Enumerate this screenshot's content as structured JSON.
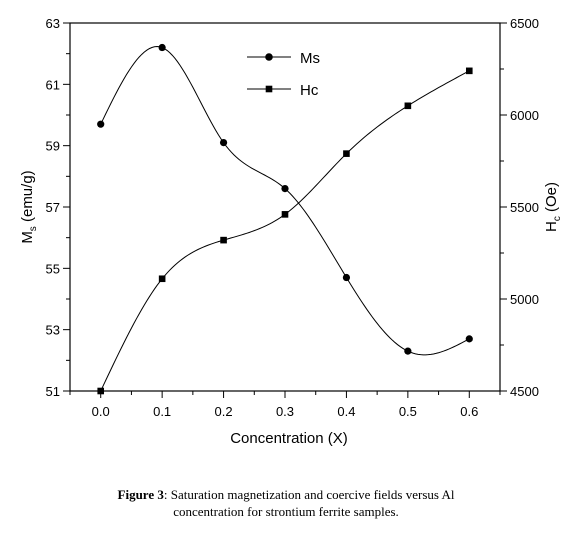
{
  "chart_data": {
    "type": "line",
    "xlabel": "Concentration (X)",
    "x_ticks": [
      "0.0",
      "0.1",
      "0.2",
      "0.3",
      "0.4",
      "0.5",
      "0.6"
    ],
    "xlim": [
      -0.05,
      0.65
    ],
    "y_left": {
      "label_main": "M",
      "label_sub": "s",
      "label_rest": " (emu/g)",
      "ylim": [
        51,
        63
      ],
      "ticks": [
        "51",
        "53",
        "55",
        "57",
        "59",
        "61",
        "63"
      ]
    },
    "y_right": {
      "label_main": "H",
      "label_sub": "c",
      "label_rest": " (Oe)",
      "ylim": [
        4500,
        6500
      ],
      "ticks": [
        "4500",
        "5000",
        "5500",
        "6000",
        "6500"
      ]
    },
    "series": [
      {
        "name": "Ms",
        "axis": "left",
        "marker": "circle",
        "x": [
          0.0,
          0.1,
          0.2,
          0.3,
          0.4,
          0.5,
          0.6
        ],
        "values": [
          59.7,
          62.2,
          59.1,
          57.6,
          54.7,
          52.3,
          52.7
        ]
      },
      {
        "name": "Hc",
        "axis": "right",
        "marker": "square",
        "x": [
          0.0,
          0.1,
          0.2,
          0.3,
          0.4,
          0.5,
          0.6
        ],
        "values": [
          4500,
          5110,
          5320,
          5460,
          5790,
          6050,
          6240
        ]
      }
    ],
    "legend_position": "top-center",
    "grid": false
  },
  "caption": {
    "label": "Figure 3",
    "line1": ": Saturation magnetization and coercive fields versus Al",
    "line2": "concentration for strontium ferrite samples."
  }
}
